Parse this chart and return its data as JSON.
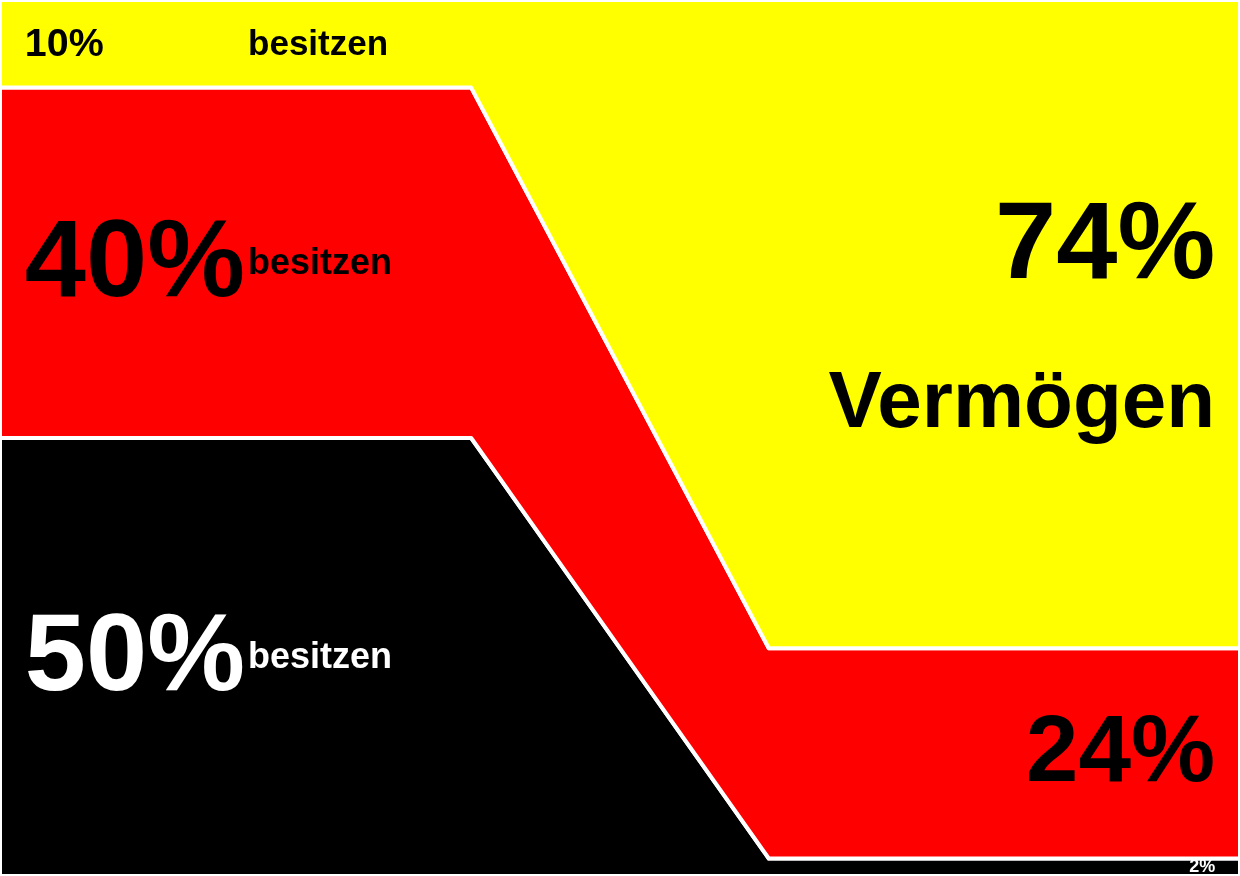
{
  "chart_data": {
    "type": "area",
    "stacked": true,
    "categories": [
      null,
      null
    ],
    "series": [
      {
        "color": "#000000",
        "values": [
          50,
          2
        ],
        "value_labels": [
          "50%",
          "2%"
        ]
      },
      {
        "color": "#ff0000",
        "values": [
          40,
          24
        ],
        "value_labels": [
          "40%",
          "24%"
        ]
      },
      {
        "color": "#ffff00",
        "values": [
          10,
          74
        ],
        "value_labels": [
          "10%",
          "74%"
        ]
      }
    ],
    "annotations": [
      "besitzen",
      "besitzen",
      "besitzen",
      "Vermögen"
    ]
  }
}
